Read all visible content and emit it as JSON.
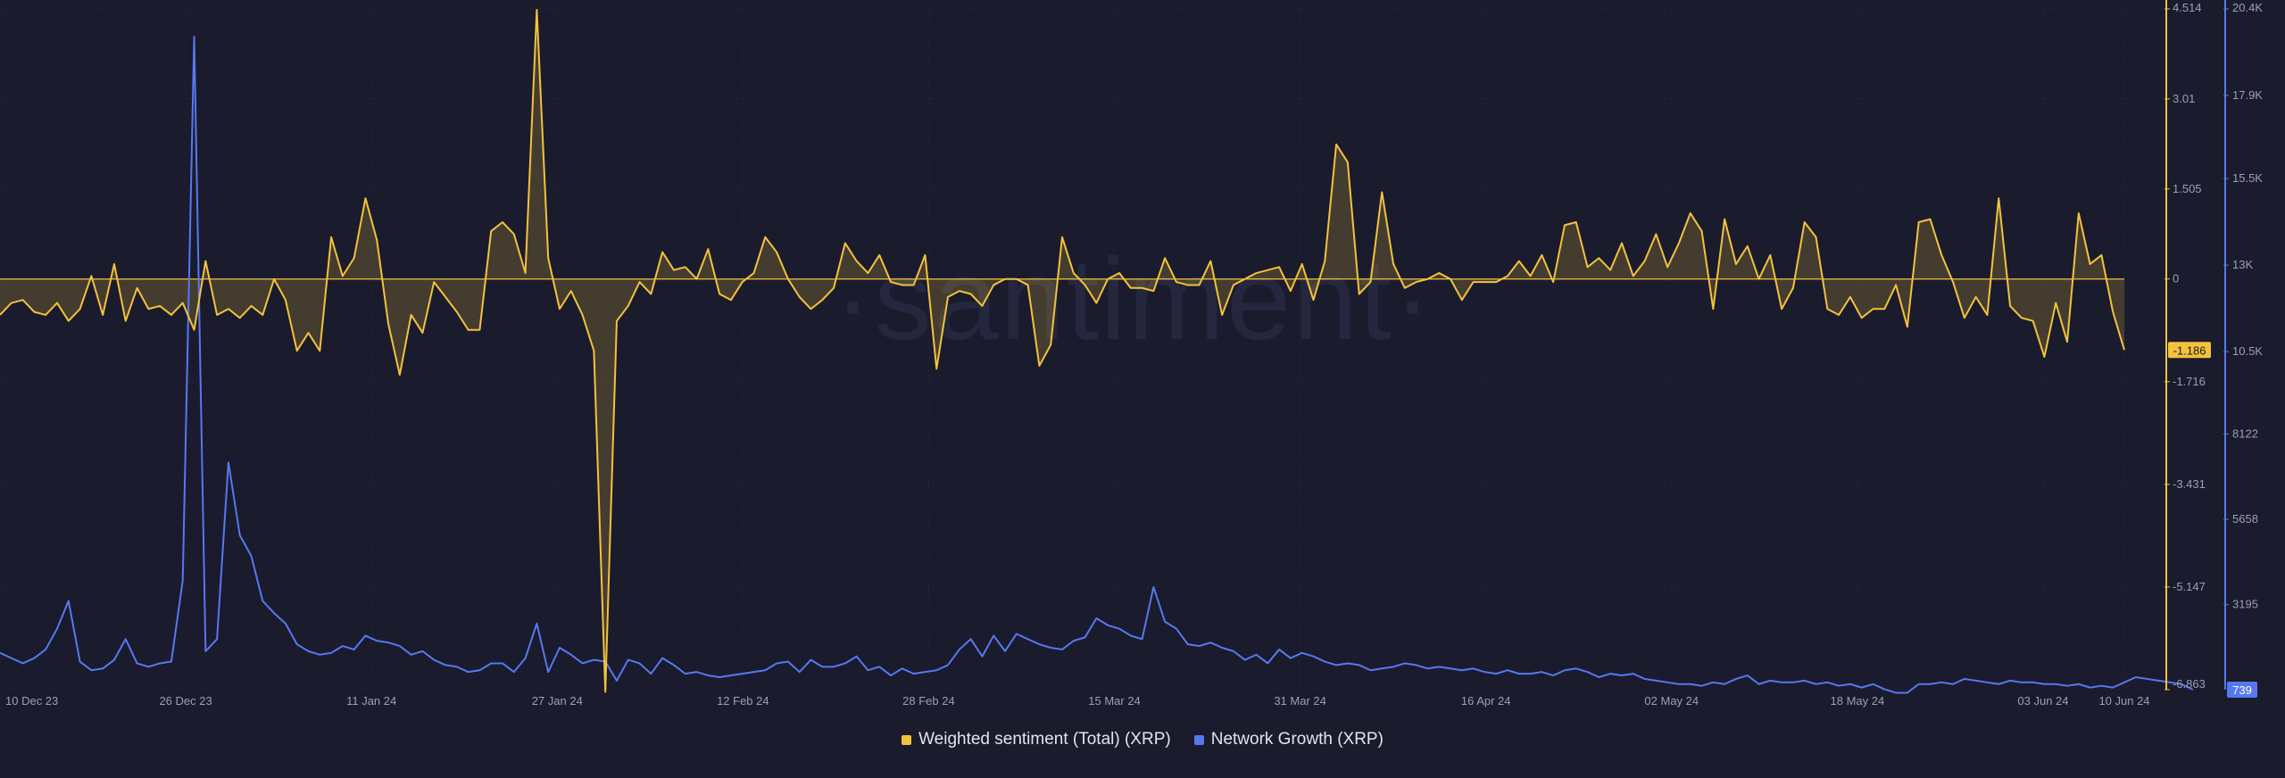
{
  "watermark": "·santiment·",
  "legend": {
    "items": [
      {
        "label": "Weighted sentiment (Total) (XRP)",
        "color": "#f3c23c"
      },
      {
        "label": "Network Growth (XRP)",
        "color": "#5778f0"
      }
    ]
  },
  "chart_data": {
    "type": "line",
    "x_tick_labels": [
      "10 Dec 23",
      "26 Dec 23",
      "11 Jan 24",
      "27 Jan 24",
      "12 Feb 24",
      "28 Feb 24",
      "15 Mar 24",
      "31 Mar 24",
      "16 Apr 24",
      "02 May 24",
      "18 May 24",
      "03 Jun 24",
      "10 Jun 24"
    ],
    "x_tick_days": [
      0,
      16,
      32,
      48,
      64,
      80,
      96,
      112,
      128,
      144,
      160,
      176,
      183
    ],
    "y_left": {
      "tick_labels": [
        "4.514",
        "3.01",
        "1.505",
        "0",
        "-1.716",
        "-3.431",
        "-5.147",
        "-6.863"
      ],
      "tick_values": [
        4.514,
        3.01,
        1.505,
        0,
        -1.716,
        -3.431,
        -5.147,
        -6.863
      ],
      "range": [
        -6.863,
        4.514
      ],
      "current_label": "-1.186",
      "current_value": -1.186
    },
    "y_right": {
      "tick_labels": [
        "20.4K",
        "17.9K",
        "15.5K",
        "13K",
        "10.5K",
        "8122",
        "5658",
        "3195"
      ],
      "tick_values": [
        20400,
        17900,
        15500,
        13000,
        10500,
        8122,
        5658,
        3195
      ],
      "range": [
        739,
        20400
      ],
      "current_label": "739",
      "current_value": 739
    },
    "series": [
      {
        "name": "Weighted sentiment (Total) (XRP)",
        "axis": "left",
        "color": "#f3c23c",
        "values": [
          -0.6,
          -0.4,
          -0.35,
          -0.55,
          -0.6,
          -0.4,
          -0.7,
          -0.5,
          0.05,
          -0.6,
          0.25,
          -0.7,
          -0.15,
          -0.5,
          -0.45,
          -0.6,
          -0.4,
          -0.85,
          0.3,
          -0.6,
          -0.5,
          -0.65,
          -0.45,
          -0.6,
          0.0,
          -0.35,
          -1.2,
          -0.9,
          -1.2,
          0.7,
          0.05,
          0.35,
          1.35,
          0.65,
          -0.75,
          -1.6,
          -0.6,
          -0.9,
          -0.05,
          -0.3,
          -0.55,
          -0.85,
          -0.85,
          0.8,
          0.95,
          0.75,
          0.1,
          4.5,
          0.35,
          -0.5,
          -0.2,
          -0.6,
          -1.2,
          -6.9,
          -0.7,
          -0.45,
          -0.05,
          -0.25,
          0.45,
          0.15,
          0.2,
          0.0,
          0.5,
          -0.25,
          -0.35,
          -0.05,
          0.1,
          0.7,
          0.45,
          0.0,
          -0.3,
          -0.5,
          -0.35,
          -0.15,
          0.6,
          0.3,
          0.1,
          0.4,
          -0.05,
          -0.1,
          -0.1,
          0.4,
          -1.5,
          -0.3,
          -0.2,
          -0.25,
          -0.45,
          -0.1,
          0.0,
          0.0,
          -0.1,
          -1.45,
          -1.1,
          0.7,
          0.1,
          -0.1,
          -0.4,
          0.0,
          0.1,
          -0.15,
          -0.15,
          -0.2,
          0.35,
          -0.05,
          -0.1,
          -0.1,
          0.3,
          -0.6,
          -0.1,
          0.0,
          0.1,
          0.15,
          0.2,
          -0.2,
          0.25,
          -0.35,
          0.3,
          2.25,
          1.95,
          -0.25,
          -0.05,
          1.45,
          0.25,
          -0.15,
          -0.05,
          0.0,
          0.1,
          0.0,
          -0.35,
          -0.05,
          -0.05,
          -0.05,
          0.05,
          0.3,
          0.05,
          0.4,
          -0.05,
          0.9,
          0.95,
          0.2,
          0.35,
          0.15,
          0.6,
          0.05,
          0.3,
          0.75,
          0.2,
          0.6,
          1.1,
          0.8,
          -0.5,
          1.0,
          0.25,
          0.55,
          0.0,
          0.4,
          -0.5,
          -0.15,
          0.95,
          0.7,
          -0.5,
          -0.6,
          -0.3,
          -0.65,
          -0.5,
          -0.5,
          -0.1,
          -0.8,
          0.95,
          1.0,
          0.4,
          -0.05,
          -0.65,
          -0.3,
          -0.6,
          1.35,
          -0.45,
          -0.65,
          -0.7,
          -1.3,
          -0.4,
          -1.05,
          1.1,
          0.25,
          0.4,
          -0.55,
          -1.186
        ]
      },
      {
        "name": "Network Growth (XRP)",
        "axis": "right",
        "color": "#5778f0",
        "values": [
          1800,
          1650,
          1500,
          1650,
          1900,
          2500,
          3300,
          1550,
          1300,
          1350,
          1600,
          2200,
          1500,
          1400,
          1500,
          1550,
          3900,
          19600,
          1850,
          2200,
          7300,
          5200,
          4600,
          3300,
          2950,
          2650,
          2050,
          1850,
          1750,
          1800,
          2000,
          1900,
          2300,
          2150,
          2100,
          2000,
          1750,
          1850,
          1600,
          1450,
          1400,
          1250,
          1300,
          1500,
          1500,
          1250,
          1650,
          2650,
          1250,
          1950,
          1750,
          1500,
          1600,
          1550,
          1000,
          1600,
          1500,
          1200,
          1650,
          1450,
          1200,
          1250,
          1150,
          1100,
          1150,
          1200,
          1250,
          1300,
          1500,
          1550,
          1250,
          1600,
          1400,
          1400,
          1500,
          1700,
          1300,
          1400,
          1150,
          1350,
          1200,
          1250,
          1300,
          1450,
          1900,
          2200,
          1700,
          2300,
          1850,
          2350,
          2200,
          2050,
          1950,
          1900,
          2150,
          2250,
          2800,
          2600,
          2500,
          2300,
          2200,
          3700,
          2700,
          2500,
          2050,
          2000,
          2100,
          1950,
          1850,
          1600,
          1750,
          1500,
          1900,
          1650,
          1800,
          1700,
          1550,
          1450,
          1500,
          1450,
          1300,
          1350,
          1400,
          1500,
          1450,
          1350,
          1400,
          1350,
          1300,
          1350,
          1250,
          1200,
          1300,
          1200,
          1200,
          1250,
          1150,
          1300,
          1350,
          1250,
          1100,
          1200,
          1150,
          1200,
          1050,
          1000,
          950,
          900,
          900,
          850,
          950,
          900,
          1050,
          1150,
          900,
          1000,
          950,
          950,
          1000,
          900,
          950,
          850,
          900,
          800,
          900,
          750,
          650,
          650,
          900,
          900,
          950,
          900,
          1050,
          1000,
          950,
          900,
          1000,
          950,
          950,
          900,
          900,
          850,
          900,
          800,
          850,
          800,
          950,
          1100,
          1050,
          1000,
          950,
          900,
          739
        ]
      }
    ]
  }
}
